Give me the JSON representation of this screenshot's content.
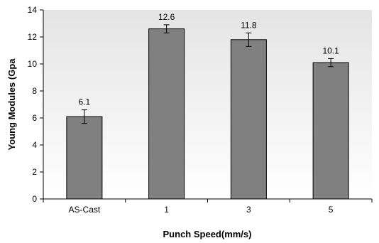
{
  "chart_data": {
    "type": "bar",
    "categories": [
      "AS-Cast",
      "1",
      "3",
      "5"
    ],
    "values": [
      6.1,
      12.6,
      11.8,
      10.1
    ],
    "error": [
      0.5,
      0.3,
      0.5,
      0.3
    ],
    "data_labels": [
      "6.1",
      "12.6",
      "11.8",
      "10.1"
    ],
    "xlabel": "Punch Speed(mm/s)",
    "ylabel": "Young Modules (Gpa",
    "ylim": [
      0,
      14
    ],
    "yticks": [
      "0",
      "2",
      "4",
      "6",
      "8",
      "10",
      "12",
      "14"
    ],
    "ytick_values": [
      0,
      2,
      4,
      6,
      8,
      10,
      12,
      14
    ],
    "grid": false,
    "legend": "none",
    "colors": {
      "plot_background": "#ededed",
      "bar_fill": "#808080",
      "bar_stroke": "#000000"
    }
  }
}
